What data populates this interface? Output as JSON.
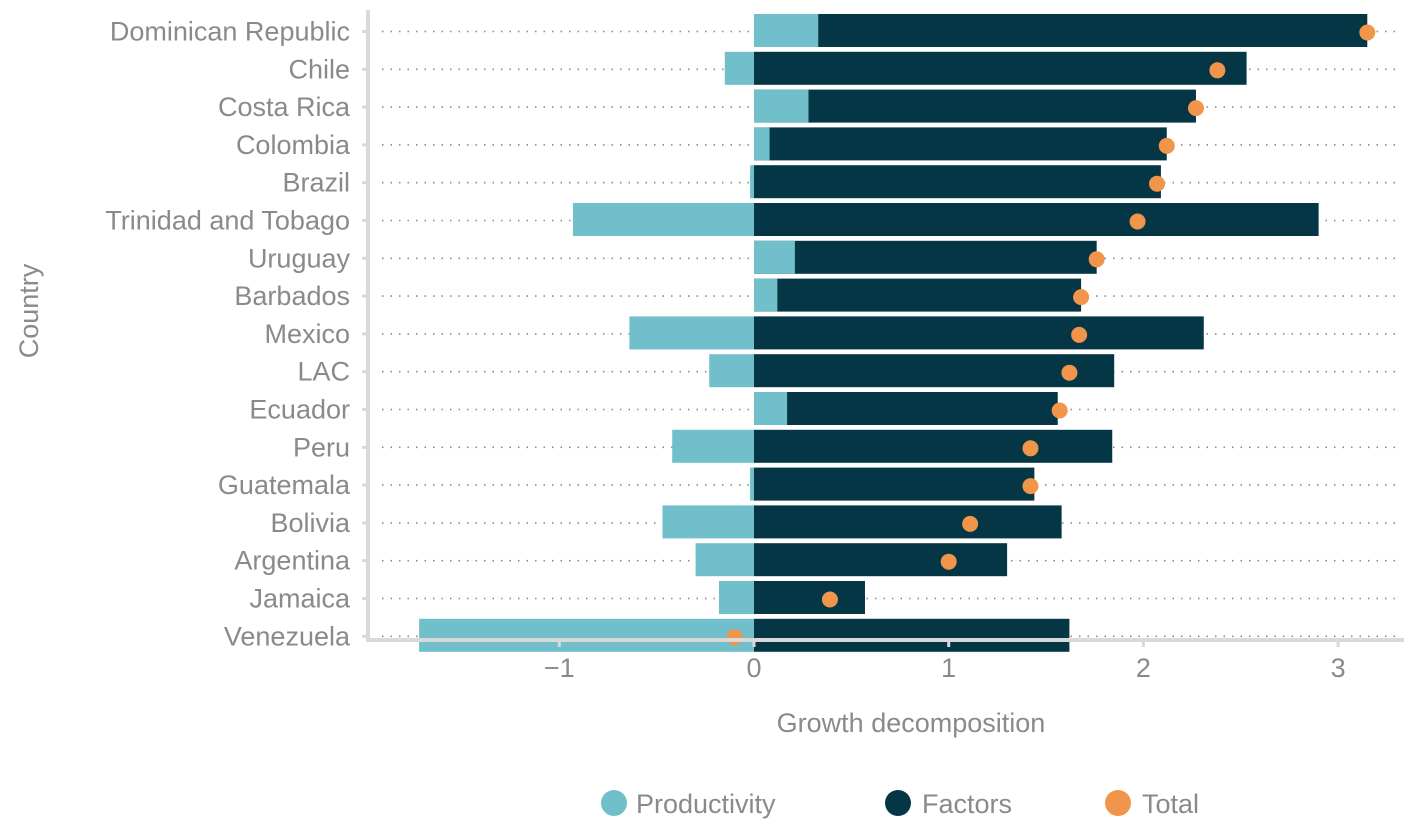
{
  "chart_data": {
    "type": "bar",
    "orientation": "horizontal",
    "stacked": "diverging",
    "ylabel": "Country",
    "xlabel": "Growth decomposition",
    "xlim": [
      -1.9,
      3.3
    ],
    "xticks": [
      {
        "value": -1,
        "label": "−1"
      },
      {
        "value": 0,
        "label": "0"
      },
      {
        "value": 1,
        "label": "1"
      },
      {
        "value": 2,
        "label": "2"
      },
      {
        "value": 3,
        "label": "3"
      }
    ],
    "categories": [
      "Dominican Republic",
      "Chile",
      "Costa Rica",
      "Colombia",
      "Brazil",
      "Trinidad and Tobago",
      "Uruguay",
      "Barbados",
      "Mexico",
      "LAC",
      "Ecuador",
      "Peru",
      "Guatemala",
      "Bolivia",
      "Argentina",
      "Jamaica",
      "Venezuela"
    ],
    "series": [
      {
        "name": "Productivity",
        "color": "#70bfcb",
        "values": [
          0.33,
          -0.15,
          0.28,
          0.08,
          -0.02,
          -0.93,
          0.21,
          0.12,
          -0.64,
          -0.23,
          0.17,
          -0.42,
          -0.02,
          -0.47,
          -0.3,
          -0.18,
          -1.72
        ]
      },
      {
        "name": "Factors",
        "color": "#053646",
        "values": [
          3.15,
          2.53,
          2.27,
          2.12,
          2.09,
          2.9,
          1.76,
          1.68,
          2.31,
          1.85,
          1.56,
          1.84,
          1.44,
          1.58,
          1.3,
          0.57,
          1.62
        ]
      },
      {
        "name": "Total",
        "color": "#f0954a",
        "marker": "dot",
        "values": [
          3.15,
          2.38,
          2.27,
          2.12,
          2.07,
          1.97,
          1.76,
          1.68,
          1.67,
          1.62,
          1.57,
          1.42,
          1.42,
          1.11,
          1.0,
          0.39,
          -0.1
        ]
      }
    ],
    "grid": "dotted horizontal row guides",
    "legend": "bottom-center"
  }
}
